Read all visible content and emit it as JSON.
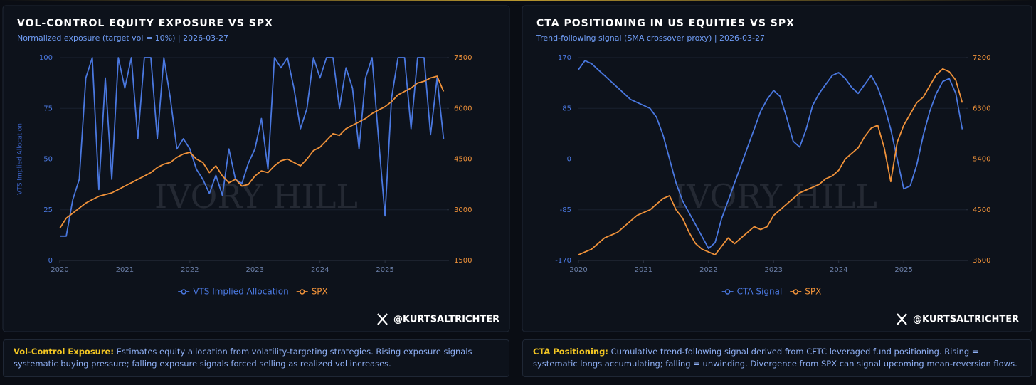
{
  "chart_data": [
    {
      "type": "line",
      "title": "VOL-CONTROL EQUITY EXPOSURE VS SPX",
      "subtitle": "Normalized exposure (target vol = 10%) | 2026-03-27",
      "ylabel": "VTS Implied Allocation",
      "x": [
        2020.0,
        2020.1,
        2020.2,
        2020.3,
        2020.4,
        2020.5,
        2020.6,
        2020.7,
        2020.8,
        2020.9,
        2021.0,
        2021.1,
        2021.2,
        2021.3,
        2021.4,
        2021.5,
        2021.6,
        2021.7,
        2021.8,
        2021.9,
        2022.0,
        2022.1,
        2022.2,
        2022.3,
        2022.4,
        2022.5,
        2022.6,
        2022.7,
        2022.8,
        2022.9,
        2023.0,
        2023.1,
        2023.2,
        2023.3,
        2023.4,
        2023.5,
        2023.6,
        2023.7,
        2023.8,
        2023.9,
        2024.0,
        2024.1,
        2024.2,
        2024.3,
        2024.4,
        2024.5,
        2024.6,
        2024.7,
        2024.8,
        2024.9,
        2025.0,
        2025.1,
        2025.2,
        2025.3,
        2025.4,
        2025.5,
        2025.6,
        2025.7,
        2025.8,
        2025.9
      ],
      "series": [
        {
          "name": "VTS Implied Allocation",
          "color": "#4a78e0",
          "values": [
            12,
            12,
            30,
            40,
            90,
            100,
            35,
            90,
            40,
            100,
            85,
            100,
            60,
            100,
            100,
            60,
            100,
            80,
            55,
            60,
            55,
            45,
            40,
            33,
            42,
            32,
            55,
            40,
            38,
            48,
            55,
            70,
            45,
            100,
            95,
            100,
            85,
            65,
            75,
            100,
            90,
            100,
            100,
            75,
            95,
            85,
            55,
            90,
            100,
            60,
            22,
            80,
            100,
            100,
            65,
            100,
            100,
            62,
            90,
            60
          ]
        },
        {
          "name": "SPX",
          "color": "#f0923a",
          "axis": "y2",
          "values": [
            2450,
            2750,
            2900,
            3050,
            3200,
            3300,
            3400,
            3450,
            3500,
            3600,
            3700,
            3800,
            3900,
            4000,
            4100,
            4250,
            4350,
            4400,
            4550,
            4650,
            4700,
            4500,
            4400,
            4100,
            4300,
            4000,
            3800,
            3900,
            3700,
            3750,
            4000,
            4150,
            4100,
            4300,
            4450,
            4500,
            4400,
            4300,
            4500,
            4750,
            4850,
            5050,
            5250,
            5200,
            5400,
            5500,
            5600,
            5700,
            5850,
            5950,
            6050,
            6200,
            6400,
            6500,
            6600,
            6750,
            6800,
            6900,
            6950,
            6500
          ]
        }
      ],
      "xlim": [
        2020,
        2025.95
      ],
      "xticks": [
        2020,
        2021,
        2022,
        2023,
        2024,
        2025
      ],
      "ylim": [
        0,
        100
      ],
      "yticks": [
        0,
        25,
        50,
        75,
        100
      ],
      "y2lim": [
        1500,
        7500
      ],
      "y2ticks": [
        1500,
        3000,
        4500,
        6000,
        7500
      ],
      "grid": true,
      "legend": "bottom"
    },
    {
      "type": "line",
      "title": "CTA POSITIONING IN US EQUITIES VS SPX",
      "subtitle": "Trend-following signal (SMA crossover proxy) | 2026-03-27",
      "x": [
        2020.0,
        2020.1,
        2020.2,
        2020.3,
        2020.4,
        2020.5,
        2020.6,
        2020.7,
        2020.8,
        2020.9,
        2021.0,
        2021.1,
        2021.2,
        2021.3,
        2021.4,
        2021.5,
        2021.6,
        2021.7,
        2021.8,
        2021.9,
        2022.0,
        2022.1,
        2022.2,
        2022.3,
        2022.4,
        2022.5,
        2022.6,
        2022.7,
        2022.8,
        2022.9,
        2023.0,
        2023.1,
        2023.2,
        2023.3,
        2023.4,
        2023.5,
        2023.6,
        2023.7,
        2023.8,
        2023.9,
        2024.0,
        2024.1,
        2024.2,
        2024.3,
        2024.4,
        2024.5,
        2024.6,
        2024.7,
        2024.8,
        2024.9,
        2025.0,
        2025.1,
        2025.2,
        2025.3,
        2025.4,
        2025.5,
        2025.6,
        2025.7,
        2025.8,
        2025.9
      ],
      "series": [
        {
          "name": "CTA Signal",
          "color": "#4a78e0",
          "values": [
            150,
            165,
            160,
            150,
            140,
            130,
            120,
            110,
            100,
            95,
            90,
            85,
            70,
            40,
            0,
            -40,
            -70,
            -90,
            -110,
            -130,
            -150,
            -140,
            -100,
            -70,
            -40,
            -10,
            20,
            50,
            80,
            100,
            115,
            105,
            70,
            30,
            20,
            50,
            90,
            110,
            125,
            140,
            145,
            135,
            120,
            110,
            125,
            140,
            120,
            90,
            50,
            0,
            -50,
            -45,
            -10,
            40,
            80,
            110,
            130,
            135,
            110,
            50
          ]
        },
        {
          "name": "SPX",
          "color": "#f0923a",
          "axis": "y2",
          "values": [
            3700,
            3750,
            3800,
            3900,
            4000,
            4050,
            4100,
            4200,
            4300,
            4400,
            4450,
            4500,
            4600,
            4700,
            4750,
            4500,
            4350,
            4100,
            3900,
            3800,
            3750,
            3700,
            3850,
            4000,
            3900,
            4000,
            4100,
            4200,
            4150,
            4200,
            4400,
            4500,
            4600,
            4700,
            4800,
            4850,
            4900,
            4950,
            5050,
            5100,
            5200,
            5400,
            5500,
            5600,
            5800,
            5950,
            6000,
            5600,
            5000,
            5700,
            6000,
            6200,
            6400,
            6500,
            6700,
            6900,
            7000,
            6950,
            6800,
            6400
          ]
        }
      ],
      "xlim": [
        2020,
        2025.95
      ],
      "xticks": [
        2020,
        2021,
        2022,
        2023,
        2024,
        2025
      ],
      "ylim": [
        -170,
        170
      ],
      "yticks": [
        -170,
        -85,
        0,
        85,
        170
      ],
      "y2lim": [
        3600,
        7200
      ],
      "y2ticks": [
        3600,
        4500,
        5400,
        6300,
        7200
      ],
      "grid": true,
      "legend": "bottom"
    }
  ],
  "brand": {
    "watermark": "IVORY HILL",
    "handle": "@KURTSALTRICHTER"
  },
  "notes": [
    {
      "label": "Vol-Control Exposure:",
      "text": "Estimates equity allocation from volatility-targeting strategies. Rising exposure signals systematic buying pressure; falling exposure signals forced selling as realized vol increases."
    },
    {
      "label": "CTA Positioning:",
      "text": "Cumulative trend-following signal derived from CFTC leveraged fund positioning. Rising = systematic longs accumulating; falling = unwinding. Divergence from SPX can signal upcoming mean-reversion flows."
    }
  ]
}
